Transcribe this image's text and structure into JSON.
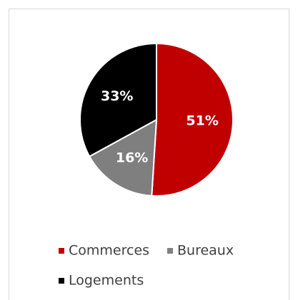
{
  "chart_data": {
    "type": "pie",
    "categories": [
      "Commerces",
      "Bureaux",
      "Logements"
    ],
    "values": [
      51,
      16,
      33
    ],
    "value_labels": [
      "51%",
      "16%",
      "33%"
    ],
    "colors": [
      "#c00000",
      "#7f7f7f",
      "#000000"
    ],
    "legend": "bottom"
  }
}
